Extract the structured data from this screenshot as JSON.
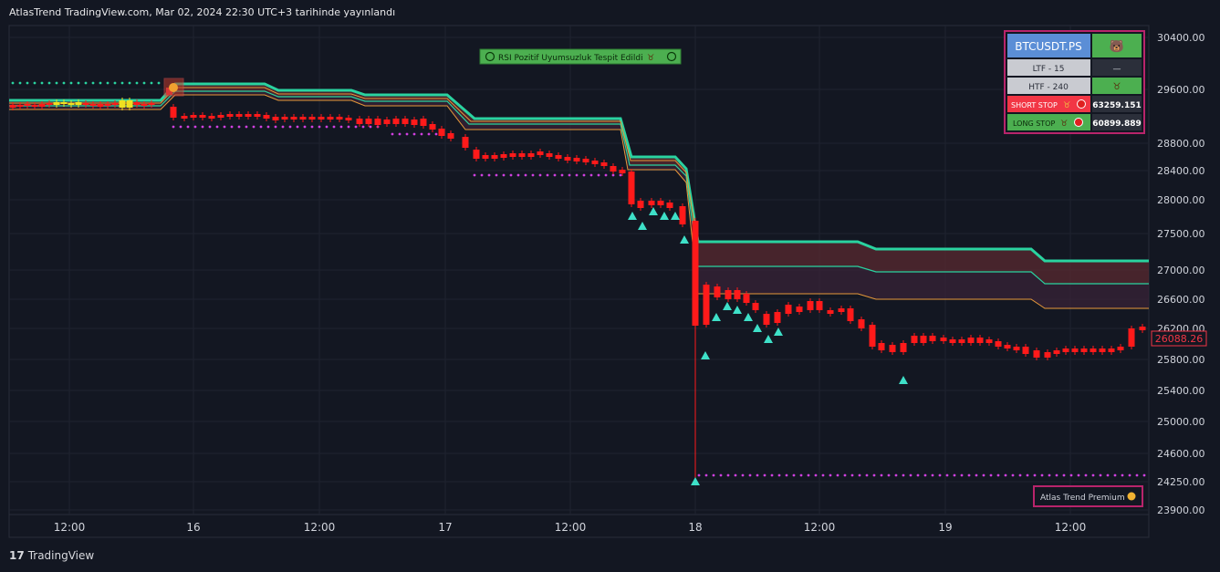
{
  "header": {
    "title": "AtlasTrend TradingView.com, Mar 02, 2024 22:30 UTC+3 tarihinde yayınlandı"
  },
  "footer": {
    "brand": "TradingView"
  },
  "price_axis": {
    "labels": [
      "30400.00",
      "29600.00",
      "28800.00",
      "28400.00",
      "28000.00",
      "27500.00",
      "27000.00",
      "26600.00",
      "26200.00",
      "25800.00",
      "25400.00",
      "25000.00",
      "24600.00",
      "24250.00",
      "23900.00"
    ],
    "last_price": "26088.26"
  },
  "time_axis": {
    "labels": [
      "12:00",
      "16",
      "12:00",
      "17",
      "12:00",
      "18",
      "12:00",
      "19",
      "12:00"
    ]
  },
  "signal_banner": {
    "text": "RSI Pozitif Uyumsuzluk Tespit Edildi"
  },
  "info_table": {
    "symbol": "BTCUSDT.PS",
    "rows": [
      {
        "label": "LTF - 15",
        "value": "—"
      },
      {
        "label": "HTF - 240",
        "value": ""
      },
      {
        "label": "SHORT STOP",
        "value": "63259.151"
      },
      {
        "label": "LONG STOP",
        "value": "60899.889"
      }
    ]
  },
  "watermark": {
    "text": "Atlas Trend Premium"
  },
  "colors": {
    "background": "#131722",
    "grid": "#1f2330",
    "candle_down": "#ff1a1a",
    "band_top": "#2ad3a0",
    "band_orange": "#e79a3a",
    "stop_dots": "#d040e0",
    "signal_triangle": "#3ee0c8",
    "table_border": "#b8246b",
    "symbol_bg": "#5b8ed6",
    "bull_bg": "#4caf50",
    "short_bg": "#f23645"
  },
  "icons": [
    "bull-icon",
    "bear-icon",
    "no-entry-icon",
    "circle-icon"
  ]
}
